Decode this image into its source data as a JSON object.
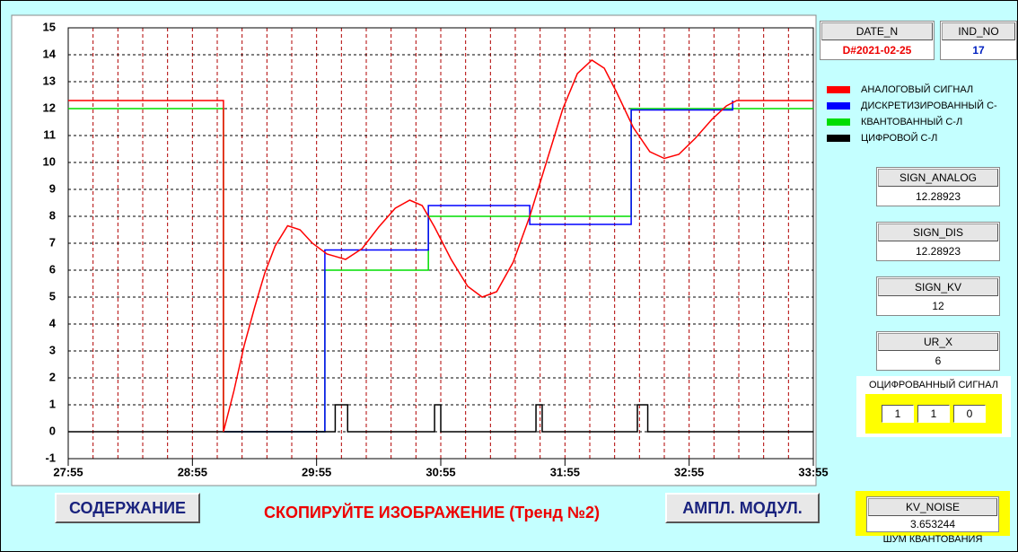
{
  "chart_data": {
    "type": "line",
    "series": [
      {
        "name": "АНАЛОГОВЫЙ СИГНАЛ",
        "color": "#ff0000",
        "x": [
          1675,
          1750,
          1750,
          1755,
          1760,
          1765,
          1770,
          1775,
          1781,
          1787,
          1793,
          1800,
          1809,
          1817,
          1825,
          1833,
          1840,
          1846,
          1852,
          1860,
          1868,
          1875,
          1882,
          1890,
          1898,
          1906,
          1914,
          1921,
          1928,
          1934,
          1940,
          1948,
          1956,
          1963,
          1970,
          1978,
          1986,
          1993,
          1998,
          2035
        ],
        "values": [
          12.3,
          12.3,
          0,
          1.5,
          3.2,
          4.6,
          5.9,
          6.9,
          7.65,
          7.5,
          7.0,
          6.6,
          6.4,
          6.8,
          7.6,
          8.3,
          8.6,
          8.4,
          7.6,
          6.4,
          5.4,
          5.0,
          5.2,
          6.3,
          8.0,
          10.0,
          12.0,
          13.3,
          13.8,
          13.5,
          12.6,
          11.3,
          10.4,
          10.15,
          10.3,
          10.9,
          11.6,
          12.1,
          12.3,
          12.3
        ]
      },
      {
        "name": "ДИСКРЕТИЗИРОВАННЫЙ С-",
        "color": "#0000ff",
        "x": [
          1750,
          1799,
          1799,
          1849,
          1849,
          1898,
          1898,
          1947,
          1947,
          1996,
          1996
        ],
        "values": [
          0,
          0,
          6.75,
          6.75,
          8.4,
          8.4,
          7.7,
          7.7,
          11.95,
          11.95,
          12.3
        ]
      },
      {
        "name": "КВАНТОВАННЫЙ С-Л",
        "color": "#00dd00",
        "x": [
          1675,
          1750,
          1750,
          1799,
          1799,
          1849,
          1849,
          1947,
          1947,
          2035
        ],
        "values": [
          12,
          12,
          0,
          0,
          6,
          6,
          8,
          8,
          12,
          12
        ]
      },
      {
        "name": "ЦИФРОВОЙ С-Л",
        "color": "#000000",
        "x": [
          1675,
          1804,
          1804,
          1810,
          1810,
          1852,
          1852,
          1855,
          1855,
          1901,
          1901,
          1904,
          1904,
          1950,
          1950,
          1955,
          1955,
          2035
        ],
        "values": [
          0,
          0,
          1,
          1,
          0,
          0,
          1,
          1,
          0,
          0,
          1,
          1,
          0,
          0,
          1,
          1,
          0,
          0
        ]
      }
    ],
    "xlim": [
      1675,
      2035
    ],
    "xticks": [
      {
        "value": 1675,
        "label": "27:55"
      },
      {
        "value": 1735,
        "label": "28:55"
      },
      {
        "value": 1795,
        "label": "29:55"
      },
      {
        "value": 1855,
        "label": "30:55"
      },
      {
        "value": 1915,
        "label": "31:55"
      },
      {
        "value": 1975,
        "label": "32:55"
      },
      {
        "value": 2035,
        "label": "33:55"
      }
    ],
    "xgrid": [
      1675,
      1687,
      1699,
      1711,
      1723,
      1735,
      1747,
      1759,
      1771,
      1783,
      1795,
      1807,
      1819,
      1831,
      1843,
      1855,
      1867,
      1879,
      1891,
      1903,
      1915,
      1927,
      1939,
      1951,
      1963,
      1975,
      1987,
      1999,
      2011,
      2023,
      2035
    ],
    "ylim": [
      -1,
      15
    ],
    "yticks": [
      -1,
      0,
      1,
      2,
      3,
      4,
      5,
      6,
      7,
      8,
      9,
      10,
      11,
      12,
      13,
      14,
      15
    ],
    "grid": true
  },
  "panel": {
    "date_label": "DATE_N",
    "date_value": "D#2021-02-25",
    "ind_label": "IND_NO",
    "ind_value": "17",
    "fields": [
      {
        "label": "SIGN_ANALOG",
        "value": "12.28923"
      },
      {
        "label": "SIGN_DIS",
        "value": "12.28923"
      },
      {
        "label": "SIGN_KV",
        "value": "12"
      },
      {
        "label": "UR_X",
        "value": "6"
      }
    ],
    "digital": {
      "title": "ОЦИФРОВАННЫЙ СИГНАЛ",
      "bits": [
        "1",
        "1",
        "0"
      ]
    },
    "noise": {
      "label": "KV_NOISE",
      "value": "3.653244",
      "caption": "ШУМ КВАНТОВАНИЯ"
    }
  },
  "buttons": [
    "СОДЕРЖАНИЕ",
    "АМПЛ. МОДУЛ."
  ],
  "caption": "СКОПИРУЙТЕ ИЗОБРАЖЕНИЕ (Тренд №2)"
}
